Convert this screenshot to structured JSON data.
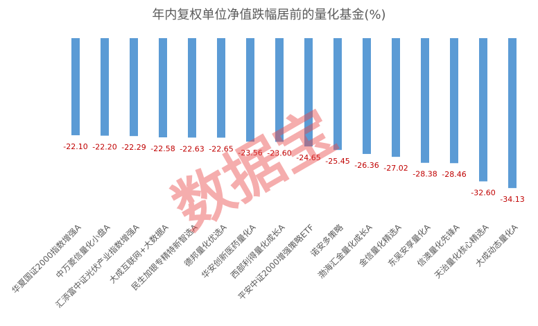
{
  "chart_data": {
    "type": "bar",
    "title": "年内复权单位净值跌幅居前的量化基金(%)",
    "categories": [
      "华夏国证2000指数增强A",
      "中万菱信量化小盘A",
      "汇添富中证光伏产业指数增强A",
      "大成互联网+大数据A",
      "民生加银专精特新智选A",
      "德邦量化优选A",
      "华安创新医药量化A",
      "西部利得量化成长A",
      "平安中证2000增强策略ETF",
      "诺安多策略",
      "渤海汇金量化成长A",
      "金信量化精选A",
      "东吴安享量化A",
      "信澳量化先锋A",
      "天治量化核心精选A",
      "大成动态量化A"
    ],
    "values": [
      -22.1,
      -22.2,
      -22.29,
      -22.58,
      -22.63,
      -22.65,
      -23.56,
      -23.6,
      -24.65,
      -25.45,
      -26.36,
      -27.02,
      -28.38,
      -28.46,
      -32.6,
      -34.13
    ],
    "value_labels": [
      "-22.10",
      "-22.20",
      "-22.29",
      "-22.58",
      "-22.63",
      "-22.65",
      "-23.56",
      "-23.60",
      "-24.65",
      "-25.45",
      "-26.36",
      "-27.02",
      "-28.38",
      "-28.46",
      "-32.60",
      "-34.13"
    ],
    "color": "#5b9bd5",
    "label_color": "#c00000",
    "ylim": [
      -36,
      0
    ],
    "watermark": "数据宝"
  }
}
